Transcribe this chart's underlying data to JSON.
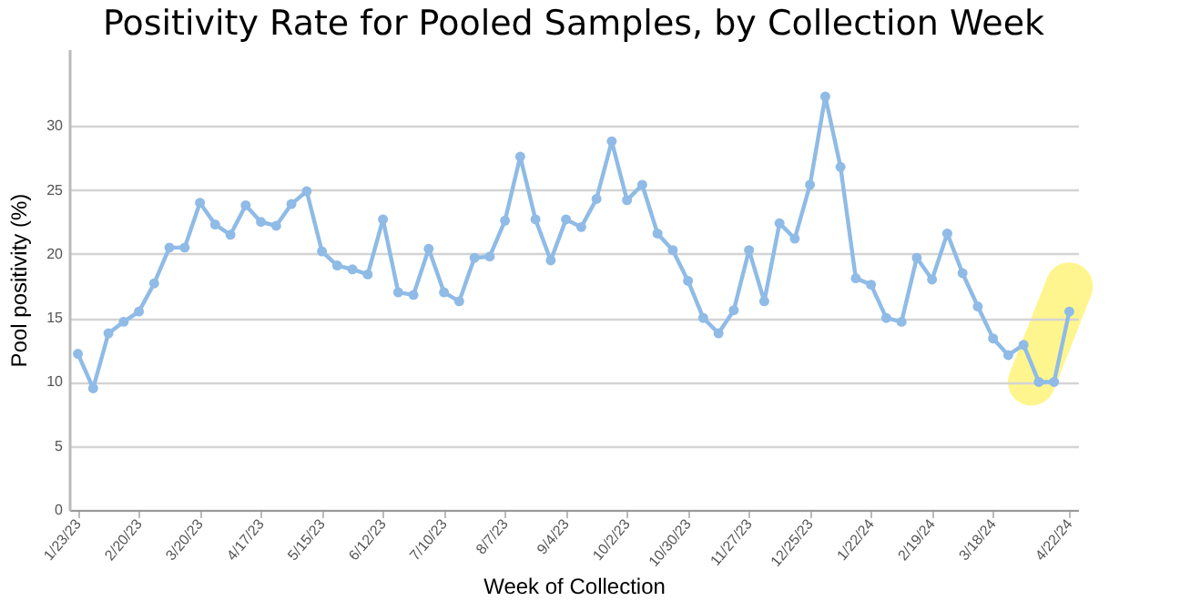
{
  "chart_data": {
    "type": "line",
    "title": "Positivity Rate for Pooled Samples, by Collection Week",
    "xlabel": "Week of Collection",
    "ylabel": "Pool positivity (%)",
    "x": [
      "2023-01-23",
      "2023-01-30",
      "2023-02-06",
      "2023-02-13",
      "2023-02-20",
      "2023-02-27",
      "2023-03-06",
      "2023-03-13",
      "2023-03-20",
      "2023-03-27",
      "2023-04-03",
      "2023-04-10",
      "2023-04-17",
      "2023-04-24",
      "2023-05-01",
      "2023-05-08",
      "2023-05-15",
      "2023-05-22",
      "2023-05-29",
      "2023-06-05",
      "2023-06-12",
      "2023-06-19",
      "2023-06-26",
      "2023-07-03",
      "2023-07-10",
      "2023-07-17",
      "2023-07-24",
      "2023-07-31",
      "2023-08-07",
      "2023-08-14",
      "2023-08-21",
      "2023-08-28",
      "2023-09-04",
      "2023-09-11",
      "2023-09-18",
      "2023-09-25",
      "2023-10-02",
      "2023-10-09",
      "2023-10-16",
      "2023-10-23",
      "2023-10-30",
      "2023-11-06",
      "2023-11-13",
      "2023-11-20",
      "2023-11-27",
      "2023-12-04",
      "2023-12-11",
      "2023-12-18",
      "2023-12-25",
      "2024-01-01",
      "2024-01-08",
      "2024-01-15",
      "2024-01-22",
      "2024-01-29",
      "2024-02-05",
      "2024-02-12",
      "2024-02-19",
      "2024-02-26",
      "2024-03-04",
      "2024-03-11",
      "2024-03-18",
      "2024-03-25",
      "2024-04-01",
      "2024-04-08",
      "2024-04-15",
      "2024-04-22"
    ],
    "series": [
      {
        "color": "#8fbbe6",
        "values": [
          12.2,
          9.5,
          13.8,
          14.7,
          15.5,
          17.7,
          20.5,
          20.5,
          24.0,
          22.3,
          21.5,
          23.8,
          22.5,
          22.2,
          23.9,
          24.9,
          20.2,
          19.1,
          18.8,
          18.4,
          22.7,
          17.0,
          16.8,
          20.4,
          17.0,
          16.3,
          19.7,
          19.8,
          22.6,
          27.6,
          22.7,
          19.5,
          22.7,
          22.1,
          24.3,
          28.8,
          24.2,
          25.4,
          21.6,
          20.3,
          17.9,
          15.0,
          13.8,
          15.6,
          20.3,
          16.3,
          22.4,
          21.2,
          25.4,
          32.3,
          26.8,
          18.1,
          17.6,
          15.0,
          14.7,
          19.7,
          18.0,
          21.6,
          18.5,
          15.9,
          13.4,
          12.1,
          12.9,
          10.0,
          10.0,
          15.5
        ]
      }
    ],
    "xlim": [
      "2023-01-19",
      "2024-04-26"
    ],
    "xticks": [
      {
        "value": "2023-01-23",
        "label": "1/23/23"
      },
      {
        "value": "2023-02-20",
        "label": "2/20/23"
      },
      {
        "value": "2023-03-20",
        "label": "3/20/23"
      },
      {
        "value": "2023-04-17",
        "label": "4/17/23"
      },
      {
        "value": "2023-05-15",
        "label": "5/15/23"
      },
      {
        "value": "2023-06-12",
        "label": "6/12/23"
      },
      {
        "value": "2023-07-10",
        "label": "7/10/23"
      },
      {
        "value": "2023-08-07",
        "label": "8/7/23"
      },
      {
        "value": "2023-09-04",
        "label": "9/4/23"
      },
      {
        "value": "2023-10-02",
        "label": "10/2/23"
      },
      {
        "value": "2023-10-30",
        "label": "10/30/23"
      },
      {
        "value": "2023-11-27",
        "label": "11/27/23"
      },
      {
        "value": "2023-12-25",
        "label": "12/25/23"
      },
      {
        "value": "2024-01-22",
        "label": "1/22/24"
      },
      {
        "value": "2024-02-19",
        "label": "2/19/24"
      },
      {
        "value": "2024-03-18",
        "label": "3/18/24"
      },
      {
        "value": "2024-04-22",
        "label": "4/22/24"
      }
    ],
    "ylim": [
      0,
      36
    ],
    "yticks": [
      0,
      5,
      10,
      15,
      20,
      25,
      30
    ],
    "grid": "y",
    "marker": "circle",
    "line_style": "solid"
  }
}
